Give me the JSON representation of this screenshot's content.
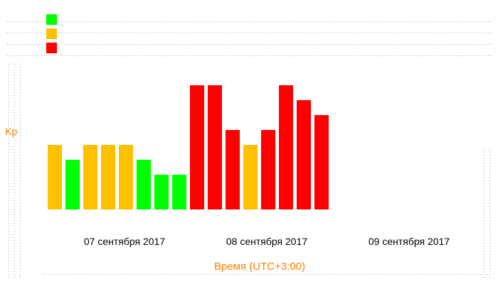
{
  "chart_data": {
    "type": "bar",
    "title": "",
    "xlabel": "Время (UTC+3:00)",
    "ylabel": "Kp",
    "ylim": [
      0,
      9
    ],
    "grid": false,
    "date_labels": [
      "07 сентября 2017",
      "08 сентября 2017",
      "09 сентября 2017"
    ],
    "legend": [
      {
        "color": "#00ff00",
        "label": ""
      },
      {
        "color": "#ffc000",
        "label": ""
      },
      {
        "color": "#ff0000",
        "label": ""
      }
    ],
    "values": [
      4.33,
      3.33,
      4.33,
      4.33,
      4.33,
      3.33,
      2.33,
      2.33,
      8.33,
      8.33,
      5.33,
      4.33,
      5.33,
      8.33,
      7.33,
      6.33
    ],
    "bar_colors": [
      "#ffc000",
      "#00ff00",
      "#ffc000",
      "#ffc000",
      "#ffc000",
      "#00ff00",
      "#00ff00",
      "#00ff00",
      "#ff0000",
      "#ff0000",
      "#ff0000",
      "#ffc000",
      "#ff0000",
      "#ff0000",
      "#ff0000",
      "#ff0000"
    ]
  }
}
